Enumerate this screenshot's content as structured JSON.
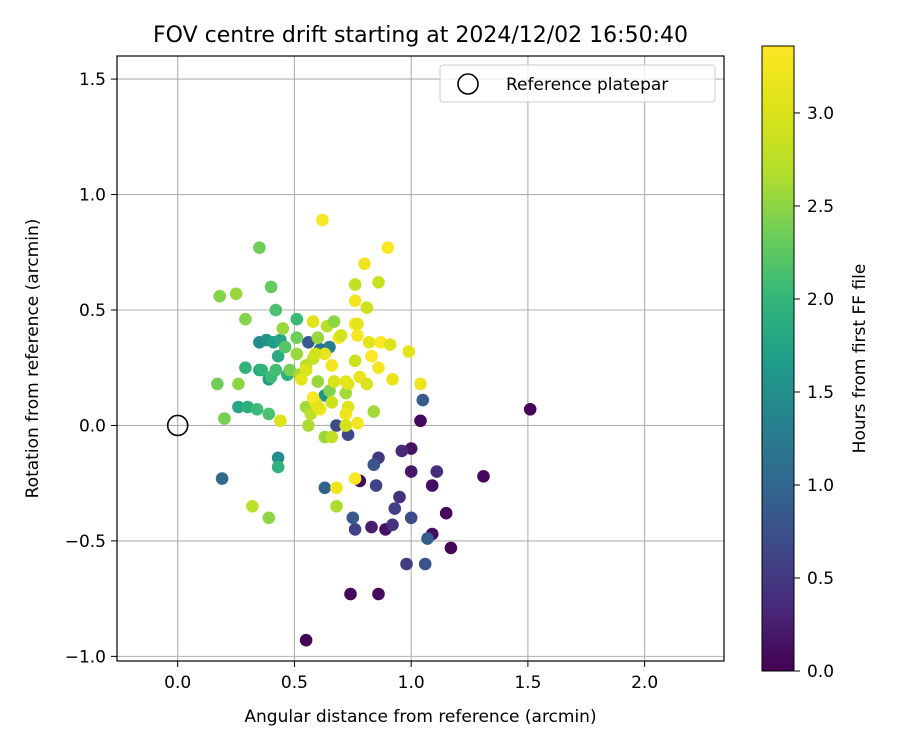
{
  "chart_data": {
    "type": "scatter",
    "title": "FOV centre drift starting at 2024/12/02 16:50:40",
    "xlabel": "Angular distance from reference (arcmin)",
    "ylabel": "Rotation from reference (arcmin)",
    "xlim": [
      -0.26,
      2.34
    ],
    "ylim": [
      -1.02,
      1.6
    ],
    "xticks": [
      0.0,
      0.5,
      1.0,
      1.5,
      2.0
    ],
    "yticks": [
      -1.0,
      -0.5,
      0.0,
      0.5,
      1.0,
      1.5
    ],
    "xtick_labels": [
      "0.0",
      "0.5",
      "1.0",
      "1.5",
      "2.0"
    ],
    "ytick_labels": [
      "−1.0",
      "−0.5",
      "0.0",
      "0.5",
      "1.0",
      "1.5"
    ],
    "grid": true,
    "colormap": "viridis",
    "colorbar": {
      "label": "Hours from first FF file",
      "range": [
        0.0,
        3.36
      ],
      "ticks": [
        0.0,
        0.5,
        1.0,
        1.5,
        2.0,
        2.5,
        3.0
      ],
      "tick_labels": [
        "0.0",
        "0.5",
        "1.0",
        "1.5",
        "2.0",
        "2.5",
        "3.0"
      ]
    },
    "legend": {
      "position": "top-right",
      "entries": [
        {
          "label": "Reference platepar",
          "marker": "open-circle",
          "x": 0.0,
          "y": 0.0
        }
      ]
    },
    "series": [
      {
        "points": [
          {
            "x": 0.55,
            "y": -0.93,
            "c": 0.02
          },
          {
            "x": 0.74,
            "y": -0.73,
            "c": 0.05
          },
          {
            "x": 0.86,
            "y": -0.73,
            "c": 0.08
          },
          {
            "x": 1.17,
            "y": -0.53,
            "c": 0.04
          },
          {
            "x": 1.09,
            "y": -0.47,
            "c": 0.1
          },
          {
            "x": 1.15,
            "y": -0.38,
            "c": 0.06
          },
          {
            "x": 1.31,
            "y": -0.22,
            "c": 0.05
          },
          {
            "x": 1.51,
            "y": 0.07,
            "c": 0.02
          },
          {
            "x": 1.04,
            "y": 0.02,
            "c": 0.07
          },
          {
            "x": 1.0,
            "y": -0.1,
            "c": 0.15
          },
          {
            "x": 1.09,
            "y": -0.26,
            "c": 0.12
          },
          {
            "x": 1.0,
            "y": -0.2,
            "c": 0.2
          },
          {
            "x": 0.89,
            "y": -0.45,
            "c": 0.14
          },
          {
            "x": 0.83,
            "y": -0.44,
            "c": 0.25
          },
          {
            "x": 0.78,
            "y": -0.24,
            "c": 0.1
          },
          {
            "x": 0.98,
            "y": -0.6,
            "c": 0.55
          },
          {
            "x": 1.06,
            "y": -0.6,
            "c": 0.78
          },
          {
            "x": 1.11,
            "y": -0.2,
            "c": 0.4
          },
          {
            "x": 1.07,
            "y": -0.49,
            "c": 0.9
          },
          {
            "x": 0.96,
            "y": -0.11,
            "c": 0.35
          },
          {
            "x": 0.92,
            "y": -0.43,
            "c": 0.45
          },
          {
            "x": 0.93,
            "y": -0.36,
            "c": 0.58
          },
          {
            "x": 0.95,
            "y": -0.31,
            "c": 0.42
          },
          {
            "x": 1.0,
            "y": -0.4,
            "c": 0.7
          },
          {
            "x": 0.86,
            "y": -0.14,
            "c": 0.47
          },
          {
            "x": 0.85,
            "y": -0.26,
            "c": 0.62
          },
          {
            "x": 0.84,
            "y": -0.17,
            "c": 0.8
          },
          {
            "x": 0.76,
            "y": -0.45,
            "c": 0.6
          },
          {
            "x": 0.75,
            "y": -0.4,
            "c": 0.85
          },
          {
            "x": 0.73,
            "y": -0.04,
            "c": 0.65
          },
          {
            "x": 0.68,
            "y": 0.0,
            "c": 0.72
          },
          {
            "x": 0.63,
            "y": -0.27,
            "c": 0.95
          },
          {
            "x": 1.05,
            "y": 0.11,
            "c": 0.88
          },
          {
            "x": 0.19,
            "y": -0.23,
            "c": 1.05
          },
          {
            "x": 0.56,
            "y": 0.36,
            "c": 0.85
          },
          {
            "x": 0.61,
            "y": 0.33,
            "c": 1.12
          },
          {
            "x": 0.63,
            "y": 0.13,
            "c": 1.55
          },
          {
            "x": 0.65,
            "y": 0.34,
            "c": 1.3
          },
          {
            "x": 0.43,
            "y": -0.14,
            "c": 1.45
          },
          {
            "x": 0.43,
            "y": -0.18,
            "c": 1.95
          },
          {
            "x": 0.35,
            "y": 0.36,
            "c": 1.45
          },
          {
            "x": 0.38,
            "y": 0.37,
            "c": 1.55
          },
          {
            "x": 0.39,
            "y": 0.2,
            "c": 1.6
          },
          {
            "x": 0.41,
            "y": 0.36,
            "c": 1.7
          },
          {
            "x": 0.43,
            "y": 0.3,
            "c": 1.85
          },
          {
            "x": 0.44,
            "y": 0.37,
            "c": 1.75
          },
          {
            "x": 0.47,
            "y": 0.22,
            "c": 1.9
          },
          {
            "x": 0.35,
            "y": 0.24,
            "c": 1.8
          },
          {
            "x": 0.36,
            "y": 0.24,
            "c": 1.95
          },
          {
            "x": 0.26,
            "y": 0.08,
            "c": 1.8
          },
          {
            "x": 0.3,
            "y": 0.08,
            "c": 1.9
          },
          {
            "x": 0.34,
            "y": 0.07,
            "c": 2.05
          },
          {
            "x": 0.39,
            "y": 0.05,
            "c": 2.15
          },
          {
            "x": 0.29,
            "y": 0.25,
            "c": 1.95
          },
          {
            "x": 0.4,
            "y": 0.21,
            "c": 2.05
          },
          {
            "x": 0.42,
            "y": 0.24,
            "c": 2.1
          },
          {
            "x": 0.42,
            "y": 0.5,
            "c": 2.15
          },
          {
            "x": 0.51,
            "y": 0.46,
            "c": 2.05
          },
          {
            "x": 0.4,
            "y": 0.6,
            "c": 2.3
          },
          {
            "x": 0.35,
            "y": 0.77,
            "c": 2.35
          },
          {
            "x": 0.29,
            "y": 0.46,
            "c": 2.45
          },
          {
            "x": 0.2,
            "y": 0.03,
            "c": 2.4
          },
          {
            "x": 0.17,
            "y": 0.18,
            "c": 2.35
          },
          {
            "x": 0.26,
            "y": 0.18,
            "c": 2.5
          },
          {
            "x": 0.18,
            "y": 0.56,
            "c": 2.45
          },
          {
            "x": 0.25,
            "y": 0.57,
            "c": 2.55
          },
          {
            "x": 0.39,
            "y": -0.4,
            "c": 2.5
          },
          {
            "x": 0.32,
            "y": -0.35,
            "c": 2.75
          },
          {
            "x": 0.46,
            "y": 0.34,
            "c": 2.2
          },
          {
            "x": 0.45,
            "y": 0.42,
            "c": 2.55
          },
          {
            "x": 0.51,
            "y": 0.38,
            "c": 2.35
          },
          {
            "x": 0.51,
            "y": 0.31,
            "c": 2.55
          },
          {
            "x": 0.48,
            "y": 0.24,
            "c": 2.4
          },
          {
            "x": 0.52,
            "y": 0.22,
            "c": 2.6
          },
          {
            "x": 0.55,
            "y": 0.26,
            "c": 2.7
          },
          {
            "x": 0.58,
            "y": 0.29,
            "c": 2.8
          },
          {
            "x": 0.6,
            "y": 0.38,
            "c": 2.55
          },
          {
            "x": 0.64,
            "y": 0.43,
            "c": 2.7
          },
          {
            "x": 0.67,
            "y": 0.45,
            "c": 2.5
          },
          {
            "x": 0.55,
            "y": 0.08,
            "c": 2.6
          },
          {
            "x": 0.57,
            "y": 0.05,
            "c": 2.75
          },
          {
            "x": 0.56,
            "y": 0.0,
            "c": 2.65
          },
          {
            "x": 0.63,
            "y": -0.05,
            "c": 2.55
          },
          {
            "x": 0.66,
            "y": -0.05,
            "c": 2.8
          },
          {
            "x": 0.68,
            "y": -0.35,
            "c": 2.65
          },
          {
            "x": 0.6,
            "y": 0.19,
            "c": 2.55
          },
          {
            "x": 0.65,
            "y": 0.15,
            "c": 2.45
          },
          {
            "x": 0.66,
            "y": 0.1,
            "c": 2.9
          },
          {
            "x": 0.72,
            "y": 0.14,
            "c": 2.6
          },
          {
            "x": 0.73,
            "y": 0.18,
            "c": 3.0
          },
          {
            "x": 0.76,
            "y": 0.61,
            "c": 2.8
          },
          {
            "x": 0.81,
            "y": 0.51,
            "c": 2.9
          },
          {
            "x": 0.86,
            "y": 0.62,
            "c": 2.85
          },
          {
            "x": 0.84,
            "y": 0.06,
            "c": 2.6
          },
          {
            "x": 0.76,
            "y": 0.28,
            "c": 2.9
          },
          {
            "x": 0.58,
            "y": 0.45,
            "c": 3.05
          },
          {
            "x": 0.55,
            "y": 0.24,
            "c": 3.0
          },
          {
            "x": 0.53,
            "y": 0.2,
            "c": 3.1
          },
          {
            "x": 0.59,
            "y": 0.1,
            "c": 3.2
          },
          {
            "x": 0.61,
            "y": 0.07,
            "c": 3.25
          },
          {
            "x": 0.58,
            "y": 0.12,
            "c": 3.35
          },
          {
            "x": 0.6,
            "y": 0.08,
            "c": 3.1
          },
          {
            "x": 0.63,
            "y": 0.31,
            "c": 3.15
          },
          {
            "x": 0.66,
            "y": 0.26,
            "c": 3.25
          },
          {
            "x": 0.67,
            "y": 0.19,
            "c": 3.0
          },
          {
            "x": 0.69,
            "y": 0.38,
            "c": 3.3
          },
          {
            "x": 0.7,
            "y": 0.39,
            "c": 2.95
          },
          {
            "x": 0.72,
            "y": 0.19,
            "c": 3.1
          },
          {
            "x": 0.73,
            "y": 0.08,
            "c": 3.05
          },
          {
            "x": 0.72,
            "y": 0.05,
            "c": 3.2
          },
          {
            "x": 0.72,
            "y": 0.0,
            "c": 2.95
          },
          {
            "x": 0.76,
            "y": 0.54,
            "c": 3.25
          },
          {
            "x": 0.76,
            "y": 0.44,
            "c": 3.35
          },
          {
            "x": 0.77,
            "y": 0.44,
            "c": 3.1
          },
          {
            "x": 0.77,
            "y": 0.39,
            "c": 3.3
          },
          {
            "x": 0.78,
            "y": 0.21,
            "c": 3.15
          },
          {
            "x": 0.77,
            "y": 0.01,
            "c": 3.25
          },
          {
            "x": 0.68,
            "y": -0.27,
            "c": 3.2
          },
          {
            "x": 0.76,
            "y": -0.23,
            "c": 3.3
          },
          {
            "x": 0.8,
            "y": 0.7,
            "c": 3.2
          },
          {
            "x": 0.9,
            "y": 0.77,
            "c": 3.35
          },
          {
            "x": 0.62,
            "y": 0.89,
            "c": 3.3
          },
          {
            "x": 0.82,
            "y": 0.36,
            "c": 3.1
          },
          {
            "x": 0.83,
            "y": 0.3,
            "c": 3.35
          },
          {
            "x": 0.81,
            "y": 0.18,
            "c": 3.0
          },
          {
            "x": 0.86,
            "y": 0.25,
            "c": 3.25
          },
          {
            "x": 0.87,
            "y": 0.36,
            "c": 3.35
          },
          {
            "x": 0.91,
            "y": 0.35,
            "c": 3.05
          },
          {
            "x": 0.92,
            "y": 0.2,
            "c": 3.15
          },
          {
            "x": 0.99,
            "y": 0.32,
            "c": 3.1
          },
          {
            "x": 1.04,
            "y": 0.18,
            "c": 3.2
          },
          {
            "x": 0.44,
            "y": 0.02,
            "c": 3.05
          },
          {
            "x": 0.59,
            "y": 0.31,
            "c": 2.95
          }
        ]
      }
    ]
  }
}
